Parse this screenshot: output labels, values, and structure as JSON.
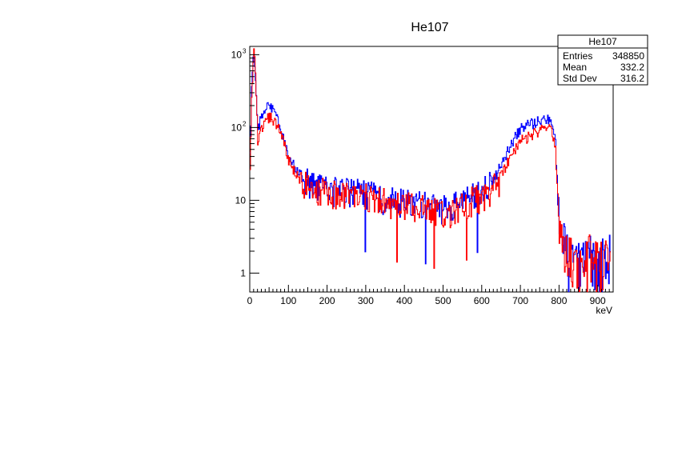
{
  "chart_data": {
    "type": "histogram",
    "title": "He107",
    "xlabel": "keV",
    "ylabel": "",
    "xlim": [
      0,
      940
    ],
    "ylim": [
      0.55,
      1300
    ],
    "yscale": "log",
    "grid": false,
    "x_ticks": [
      "0",
      "100",
      "200",
      "300",
      "400",
      "500",
      "600",
      "700",
      "800",
      "900"
    ],
    "y_ticks": [
      {
        "value": 1,
        "label": "1"
      },
      {
        "value": 10,
        "label": "10"
      },
      {
        "value": 100,
        "label": "10",
        "exp": "2"
      },
      {
        "value": 1000,
        "label": "10",
        "exp": "3"
      }
    ],
    "stats_box": {
      "title": "He107",
      "rows": [
        {
          "label": "Entries",
          "value": "348850"
        },
        {
          "label": "Mean",
          "value": "332.2"
        },
        {
          "label": "Std Dev",
          "value": "316.2"
        }
      ]
    },
    "series": [
      {
        "color": "#0000ff",
        "x": [
          0,
          5,
          10,
          15,
          20,
          25,
          30,
          40,
          50,
          60,
          70,
          80,
          90,
          100,
          120,
          140,
          160,
          180,
          200,
          250,
          300,
          350,
          400,
          450,
          500,
          520,
          540,
          560,
          580,
          600,
          620,
          640,
          660,
          680,
          700,
          720,
          740,
          760,
          770,
          780,
          790,
          800,
          820,
          840,
          860,
          880,
          900,
          920,
          935
        ],
        "values": [
          40,
          600,
          1000,
          300,
          90,
          120,
          150,
          180,
          200,
          170,
          130,
          90,
          60,
          40,
          25,
          20,
          18,
          16,
          15,
          14,
          13,
          11,
          10,
          9,
          8,
          8,
          10,
          11,
          12,
          14,
          18,
          24,
          40,
          65,
          95,
          110,
          120,
          130,
          140,
          120,
          60,
          5,
          2,
          2,
          1.5,
          2,
          1.5,
          2,
          2
        ]
      },
      {
        "color": "#ff0000",
        "x": [
          0,
          5,
          10,
          15,
          20,
          25,
          30,
          40,
          50,
          60,
          70,
          80,
          90,
          100,
          120,
          140,
          160,
          180,
          200,
          250,
          300,
          350,
          400,
          450,
          500,
          520,
          540,
          560,
          580,
          600,
          620,
          640,
          660,
          680,
          700,
          720,
          740,
          760,
          770,
          780,
          790,
          800,
          820,
          840,
          860,
          880,
          900,
          920,
          935
        ],
        "values": [
          30,
          400,
          1200,
          500,
          60,
          80,
          100,
          120,
          140,
          130,
          110,
          80,
          55,
          35,
          22,
          18,
          17,
          15,
          14,
          13,
          12,
          10,
          9,
          8,
          7.5,
          7.5,
          9,
          10,
          11,
          12,
          14,
          18,
          28,
          45,
          65,
          75,
          85,
          95,
          100,
          90,
          50,
          4,
          2,
          1.5,
          1.5,
          2,
          1.5,
          2,
          1.5
        ]
      }
    ]
  }
}
